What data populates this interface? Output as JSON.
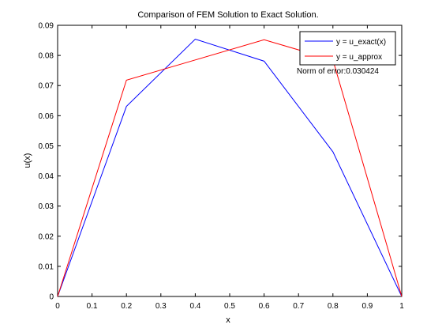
{
  "chart_data": {
    "type": "line",
    "title": "Comparison of FEM Solution to Exact Solution.",
    "xlabel": "x",
    "ylabel": "u(x)",
    "xlim": [
      0,
      1
    ],
    "ylim": [
      0,
      0.09
    ],
    "x_ticks": [
      "0",
      "0.1",
      "0.2",
      "0.3",
      "0.4",
      "0.5",
      "0.6",
      "0.7",
      "0.8",
      "0.9",
      "1"
    ],
    "x_tick_values": [
      0,
      0.1,
      0.2,
      0.3,
      0.4,
      0.5,
      0.6,
      0.7,
      0.8,
      0.9,
      1
    ],
    "y_ticks": [
      "0",
      "0.01",
      "0.02",
      "0.03",
      "0.04",
      "0.05",
      "0.06",
      "0.07",
      "0.08",
      "0.09"
    ],
    "y_tick_values": [
      0,
      0.01,
      0.02,
      0.03,
      0.04,
      0.05,
      0.06,
      0.07,
      0.08,
      0.09
    ],
    "grid": false,
    "legend_position": "top-right",
    "series": [
      {
        "name": "y = u_exact(x)",
        "color": "#0000ff",
        "x": [
          0,
          0.2,
          0.4,
          0.6,
          0.8,
          1
        ],
        "y": [
          0,
          0.0631,
          0.0854,
          0.0781,
          0.048,
          0
        ]
      },
      {
        "name": "y = u_approx",
        "color": "#ff0000",
        "x": [
          0,
          0.2,
          0.4,
          0.6,
          0.8,
          1
        ],
        "y": [
          0,
          0.0718,
          0.0785,
          0.0852,
          0.0785,
          0
        ]
      }
    ],
    "annotation": "Norm of error:0.030424"
  }
}
